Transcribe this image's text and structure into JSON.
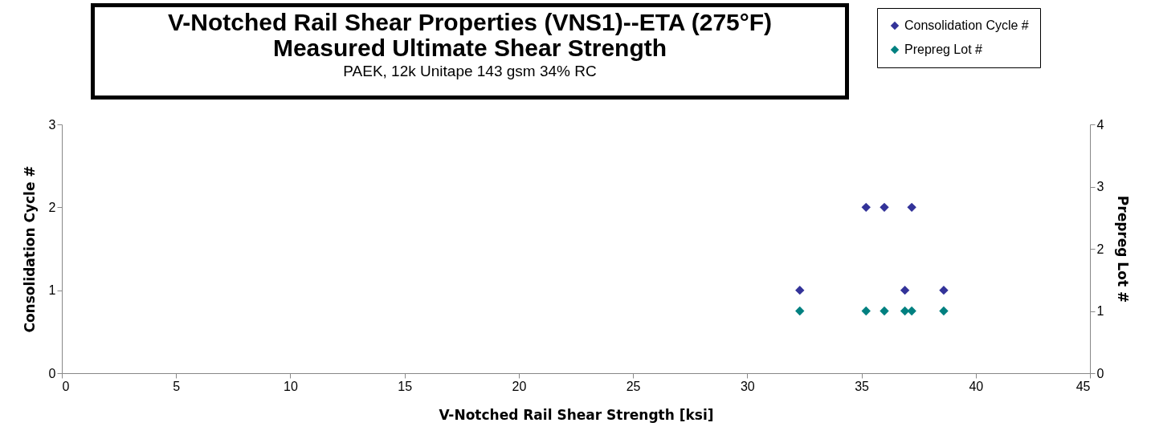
{
  "chart_data": {
    "type": "scatter",
    "title": "V-Notched Rail Shear Properties (VNS1)--ETA (275°F)\nMeasured Ultimate Shear Strength",
    "subtitle": "PAEK, 12k Unitape 143 gsm 34% RC",
    "xlabel": "V-Notched Rail Shear Strength [ksi]",
    "ylabel": "Consolidation Cycle #",
    "y2label": "Prepreg Lot #",
    "xlim": [
      0,
      45
    ],
    "xticks": [
      0,
      5,
      10,
      15,
      20,
      25,
      30,
      35,
      40,
      45
    ],
    "ylim": [
      0,
      3
    ],
    "yticks": [
      0,
      1,
      2,
      3
    ],
    "y2lim": [
      0,
      4
    ],
    "y2ticks": [
      0,
      1,
      2,
      3,
      4
    ],
    "marker": "diamond",
    "legend": "top right",
    "series": [
      {
        "name": "Consolidation Cycle #",
        "color": "#333399",
        "x": [
          32.3,
          36.9,
          38.6,
          35.2,
          36.0,
          37.2
        ],
        "values": [
          1,
          1,
          1,
          2,
          2,
          2
        ]
      },
      {
        "name": "Prepreg Lot #",
        "color": "#008080",
        "axis": "y2",
        "x": [
          32.3,
          35.2,
          36.0,
          36.9,
          37.2,
          38.6
        ],
        "values": [
          1,
          1,
          1,
          1,
          1,
          1
        ]
      }
    ]
  }
}
